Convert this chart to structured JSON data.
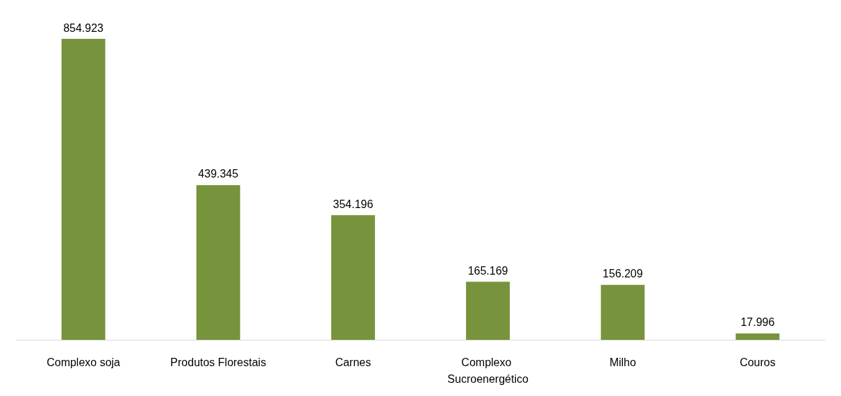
{
  "chart_data": {
    "type": "bar",
    "categories": [
      "Complexo soja",
      "Produtos Florestais",
      "Carnes",
      "Complexo Sucroenergético",
      "Milho",
      "Couros"
    ],
    "values": [
      854923,
      439345,
      354196,
      165169,
      156209,
      17996
    ],
    "value_labels": [
      "854.923",
      "439.345",
      "354.196",
      "165.169",
      "156.209",
      "17.996"
    ],
    "color": "#77933c"
  }
}
